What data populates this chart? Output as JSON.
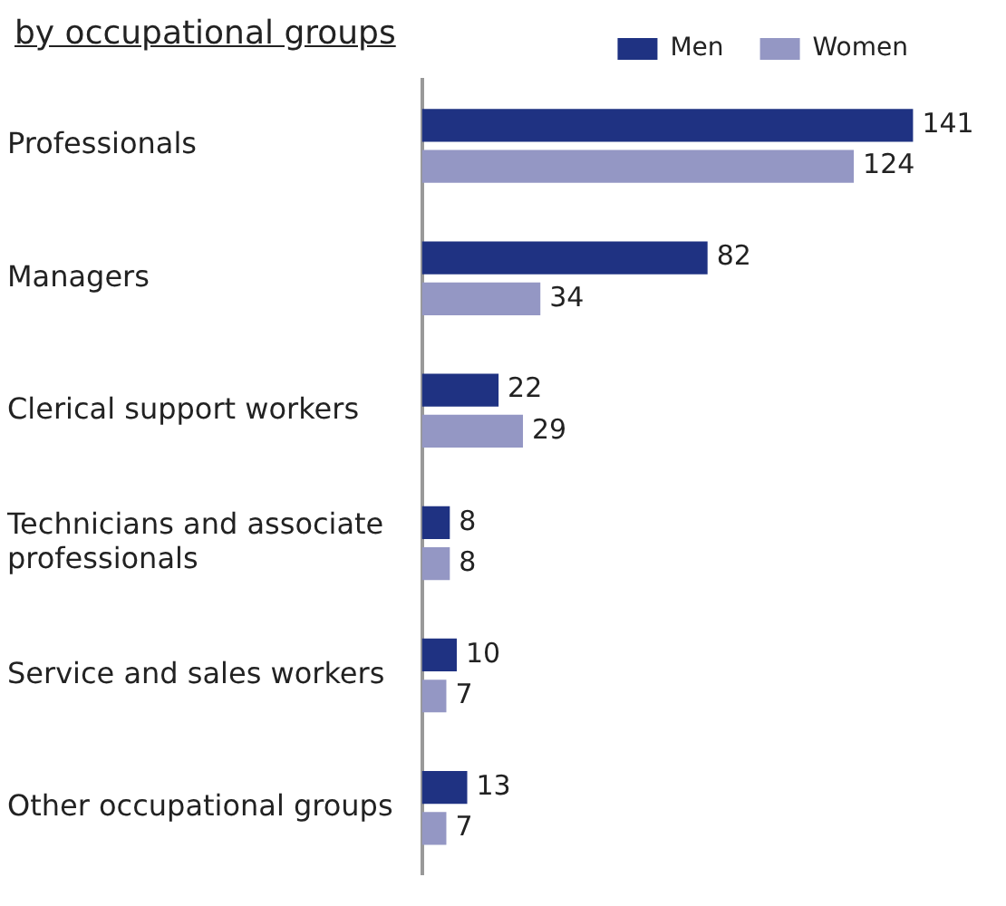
{
  "chart_data": {
    "type": "bar",
    "orientation": "horizontal",
    "title": "by occupational groups",
    "categories": [
      "Professionals",
      "Managers",
      "Clerical support workers",
      "Technicians and associate professionals",
      "Service and sales workers",
      "Other occupational groups"
    ],
    "series": [
      {
        "name": "Men",
        "color": "#1f3282",
        "values": [
          141,
          82,
          22,
          8,
          10,
          13
        ]
      },
      {
        "name": "Women",
        "color": "#9497c4",
        "values": [
          124,
          34,
          29,
          8,
          7,
          7
        ]
      }
    ],
    "data_labels": true,
    "legend": "top right"
  }
}
